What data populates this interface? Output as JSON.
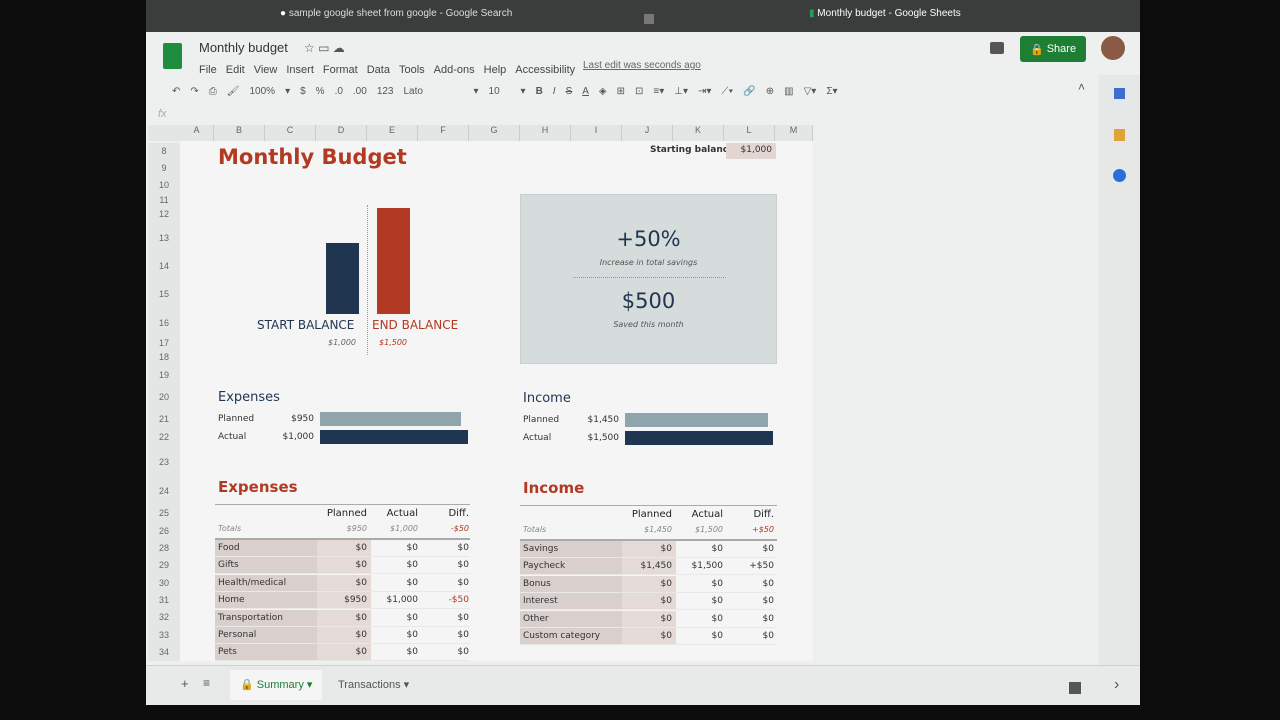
{
  "browser": {
    "tabs": [
      {
        "label": "sample google sheet from google - Google Search"
      },
      {
        "label": "Monthly budget - Google Sheets"
      }
    ]
  },
  "header": {
    "title": "Monthly budget",
    "menu": [
      "File",
      "Edit",
      "View",
      "Insert",
      "Format",
      "Data",
      "Tools",
      "Add-ons",
      "Help",
      "Accessibility"
    ],
    "last_edit": "Last edit was seconds ago",
    "share": "Share"
  },
  "toolbar": {
    "zoom": "100%",
    "currency": "$",
    "percent": "%",
    "dec_less": ".0",
    "dec_more": ".00",
    "format": "123",
    "font": "Lato",
    "size": "10",
    "bold": "B",
    "italic": "I",
    "strike": "S",
    "textcolor": "A",
    "fx": "fx"
  },
  "columns": [
    "A",
    "B",
    "C",
    "D",
    "E",
    "F",
    "G",
    "H",
    "I",
    "J",
    "K",
    "L",
    "M"
  ],
  "rows": [
    "8",
    "9",
    "10",
    "11",
    "12",
    "13",
    "14",
    "15",
    "16",
    "17",
    "18",
    "19",
    "20",
    "21",
    "22",
    "23",
    "24",
    "25",
    "26",
    "28",
    "29",
    "30",
    "31",
    "32",
    "33",
    "34"
  ],
  "sheet": {
    "title": "Monthly Budget",
    "starting_label": "Starting balance:",
    "starting_value": "$1,000",
    "summary": {
      "pct": "+50%",
      "pct_label": "Increase in total savings",
      "saved": "$500",
      "saved_label": "Saved this month"
    },
    "colors": {
      "start": "#1f3550",
      "end": "#b33a22",
      "planned": "#8fa4ab",
      "actual": "#1f3550"
    }
  },
  "chart_data": {
    "type": "bar",
    "categories": [
      "START BALANCE",
      "END BALANCE"
    ],
    "values": [
      1000,
      1500
    ],
    "labels": [
      "$1,000",
      "$1,500"
    ]
  },
  "exp_bars": {
    "title": "Expenses",
    "rows": [
      {
        "label": "Planned",
        "value_text": "$950",
        "value": 950
      },
      {
        "label": "Actual",
        "value_text": "$1,000",
        "value": 1000
      }
    ]
  },
  "inc_bars": {
    "title": "Income",
    "rows": [
      {
        "label": "Planned",
        "value_text": "$1,450",
        "value": 1450
      },
      {
        "label": "Actual",
        "value_text": "$1,500",
        "value": 1500
      }
    ]
  },
  "expenses": {
    "title": "Expenses",
    "headers": [
      "Planned",
      "Actual",
      "Diff."
    ],
    "totals": [
      "Totals",
      "$950",
      "$1,000",
      "-$50"
    ],
    "rows": [
      [
        "Food",
        "$0",
        "$0",
        "$0"
      ],
      [
        "Gifts",
        "$0",
        "$0",
        "$0"
      ],
      [
        "Health/medical",
        "$0",
        "$0",
        "$0"
      ],
      [
        "Home",
        "$950",
        "$1,000",
        "-$50"
      ],
      [
        "Transportation",
        "$0",
        "$0",
        "$0"
      ],
      [
        "Personal",
        "$0",
        "$0",
        "$0"
      ],
      [
        "Pets",
        "$0",
        "$0",
        "$0"
      ]
    ]
  },
  "income": {
    "title": "Income",
    "headers": [
      "Planned",
      "Actual",
      "Diff."
    ],
    "totals": [
      "Totals",
      "$1,450",
      "$1,500",
      "+$50"
    ],
    "rows": [
      [
        "Savings",
        "$0",
        "$0",
        "$0"
      ],
      [
        "Paycheck",
        "$1,450",
        "$1,500",
        "+$50"
      ],
      [
        "Bonus",
        "$0",
        "$0",
        "$0"
      ],
      [
        "Interest",
        "$0",
        "$0",
        "$0"
      ],
      [
        "Other",
        "$0",
        "$0",
        "$0"
      ],
      [
        "Custom category",
        "$0",
        "$0",
        "$0"
      ]
    ]
  },
  "sheet_tabs": [
    {
      "label": "Summary"
    },
    {
      "label": "Transactions"
    }
  ]
}
